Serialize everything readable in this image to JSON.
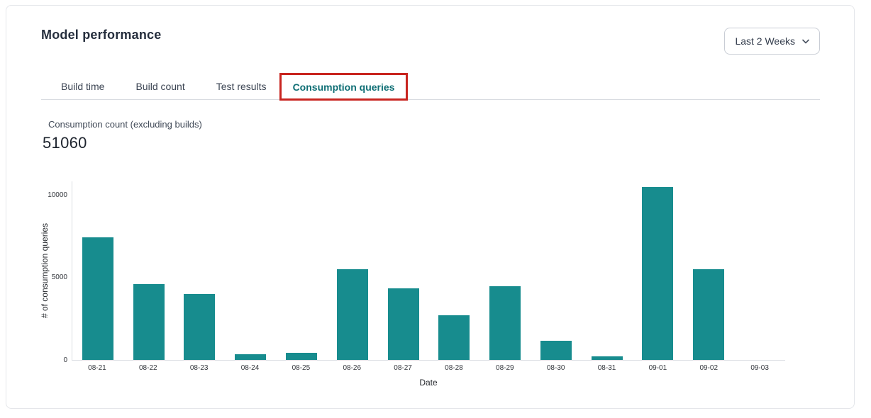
{
  "header": {
    "title": "Model performance",
    "range_selector": {
      "value": "Last 2 Weeks"
    }
  },
  "tabs": [
    {
      "label": "Build time",
      "active": false
    },
    {
      "label": "Build count",
      "active": false
    },
    {
      "label": "Test results",
      "active": false
    },
    {
      "label": "Consumption queries",
      "active": true
    }
  ],
  "annotation": {
    "type": "highlight-box",
    "target": "Consumption queries tab",
    "color": "#c8241f"
  },
  "metric": {
    "label": "Consumption count (excluding builds)",
    "value": "51060"
  },
  "chart_data": {
    "type": "bar",
    "title": "",
    "xlabel": "Date",
    "ylabel": "# of consumption queries",
    "categories": [
      "08-21",
      "08-22",
      "08-23",
      "08-24",
      "08-25",
      "08-26",
      "08-27",
      "08-28",
      "08-29",
      "08-30",
      "08-31",
      "09-01",
      "09-02",
      "09-03"
    ],
    "values": [
      7400,
      4600,
      4000,
      330,
      440,
      5480,
      4330,
      2720,
      4450,
      1150,
      210,
      10450,
      5500,
      0
    ],
    "yticks": [
      0,
      5000,
      10000
    ],
    "ylim": [
      0,
      10850
    ],
    "grid": false,
    "legend": false,
    "bar_color": "#178c8e"
  },
  "colors": {
    "active_tab_text": "#0e6e74",
    "annotation_red": "#c8241f",
    "bar_teal": "#178c8e",
    "card_border": "#e4e6ea",
    "divider": "#d9dce1",
    "text_dark": "#2b3445"
  }
}
